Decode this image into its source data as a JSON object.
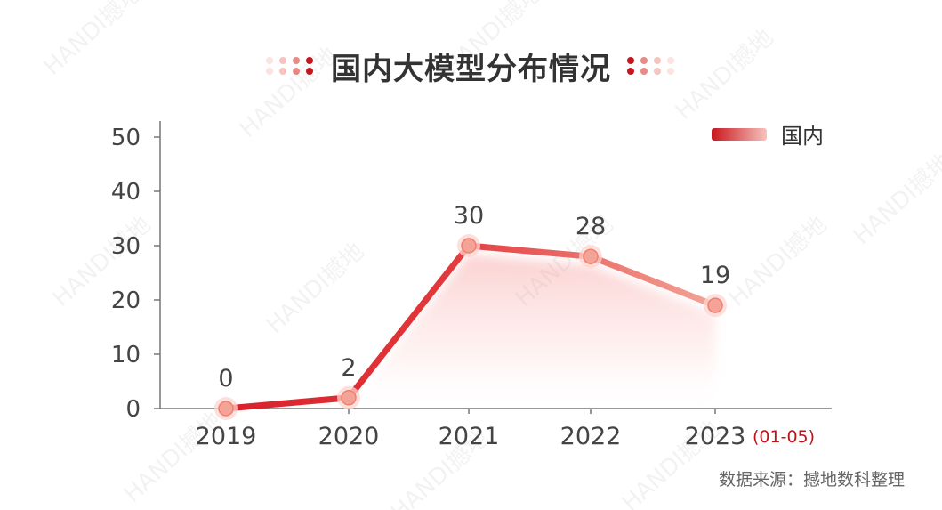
{
  "title": "国内大模型分布情况",
  "source": "数据来源：撼地数科整理",
  "watermark": "HANDI撼地",
  "colors": {
    "line_dark": "#d8212b",
    "line_light": "#f3a79a",
    "marker": "#f4a497",
    "marker_halo": "#fbd5cf",
    "axis": "#777777",
    "text": "#444444",
    "note": "#c0141d"
  },
  "chart_data": {
    "type": "line",
    "categories": [
      "2019",
      "2020",
      "2021",
      "2022",
      "2023"
    ],
    "category_note": "(01-05)",
    "series": [
      {
        "name": "国内",
        "values": [
          0,
          2,
          30,
          28,
          19
        ]
      }
    ],
    "data_labels": [
      "0",
      "2",
      "30",
      "28",
      "19"
    ],
    "yticks": [
      "0",
      "10",
      "20",
      "30",
      "40",
      "50"
    ],
    "ylim": [
      0,
      50
    ],
    "grid": false,
    "legend": "top-right",
    "area_fill": true
  }
}
